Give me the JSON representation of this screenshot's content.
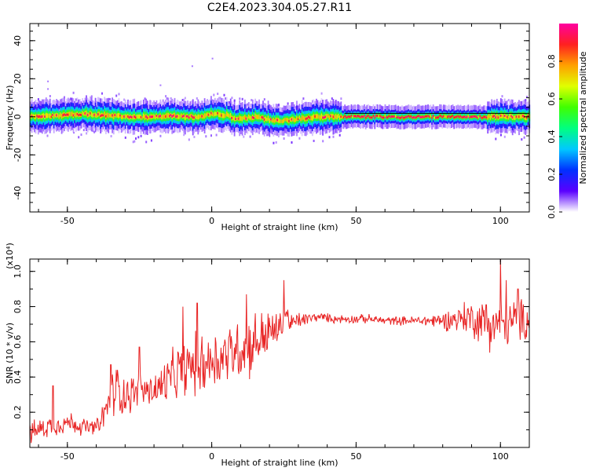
{
  "figure_title": "C2E4.2023.304.05.27.R11",
  "chart_data": [
    {
      "type": "heatmap",
      "title": "C2E4.2023.304.05.27.R11",
      "xlabel": "Height of straight line (km)",
      "ylabel": "Frequency (Hz)",
      "xlim": [
        -63,
        110
      ],
      "ylim": [
        -50,
        49
      ],
      "xticks": [
        -50,
        0,
        50,
        100
      ],
      "yticks": [
        -40,
        -20,
        0,
        20,
        40
      ],
      "xtick_labels": [
        "-50",
        "0",
        "50",
        "100"
      ],
      "ytick_labels": [
        "-40",
        "-20",
        "0",
        "20",
        "40"
      ],
      "colorbar": {
        "label": "Normalized spectral amplitude",
        "range": [
          0,
          1
        ],
        "ticks": [
          0.0,
          0.2,
          0.4,
          0.6,
          0.8
        ],
        "tick_labels": [
          "0.0",
          "0.2",
          "0.4",
          "0.6",
          "0.8"
        ],
        "colormap": [
          "#ffffff",
          "#5a00ff",
          "#0030ff",
          "#00c8ff",
          "#00ff80",
          "#40ff00",
          "#e0ff00",
          "#ffa000",
          "#ff2020",
          "#ff00a0"
        ]
      },
      "ridge_frequency_hz": [
        [
          -63,
          0
        ],
        [
          -55,
          0.5
        ],
        [
          -45,
          1.5
        ],
        [
          -38,
          1
        ],
        [
          -30,
          0
        ],
        [
          -22,
          0
        ],
        [
          -15,
          0.5
        ],
        [
          -8,
          0
        ],
        [
          -5,
          0
        ],
        [
          0,
          1.5
        ],
        [
          5,
          1
        ],
        [
          8,
          -1
        ],
        [
          15,
          0
        ],
        [
          20,
          -1.5
        ],
        [
          25,
          -2
        ],
        [
          30,
          -1
        ],
        [
          35,
          0
        ],
        [
          45,
          0
        ],
        [
          60,
          0
        ],
        [
          80,
          0
        ],
        [
          95,
          0
        ],
        [
          110,
          0
        ]
      ],
      "scattered_points": [
        [
          -57,
          19
        ],
        [
          -57,
          15
        ],
        [
          -53,
          4
        ],
        [
          -48,
          -8
        ],
        [
          -18,
          17
        ],
        [
          -7,
          27
        ],
        [
          0,
          31
        ],
        [
          -40,
          6
        ],
        [
          -28,
          5
        ]
      ],
      "grid": false
    },
    {
      "type": "line",
      "xlabel": "Height of straight line (km)",
      "ylabel": "SNR (10 * v/v)",
      "y_multiplier": "(x10⁴)",
      "xlim": [
        -63,
        110
      ],
      "ylim": [
        0,
        1.07
      ],
      "xticks": [
        -50,
        0,
        50,
        100
      ],
      "yticks": [
        0.2,
        0.4,
        0.6,
        0.8,
        1.0
      ],
      "xtick_labels": [
        "-50",
        "0",
        "50",
        "100"
      ],
      "ytick_labels": [
        "0.2",
        "0.4",
        "0.6",
        "0.8",
        "1.0"
      ],
      "color": "#e82424",
      "grid": false,
      "series": [
        {
          "x": [
            -63,
            -60,
            -57,
            -54,
            -51,
            -48,
            -45,
            -42,
            -39,
            -36,
            -33,
            -30,
            -27,
            -24,
            -21,
            -18,
            -15,
            -12,
            -9,
            -6,
            -3,
            0,
            3,
            6,
            9,
            12,
            15,
            18,
            21,
            24,
            25.5,
            27,
            30,
            33,
            36,
            39,
            42,
            45,
            50,
            55,
            60,
            65,
            70,
            75,
            80,
            85,
            88,
            91,
            94,
            97,
            100,
            103,
            106,
            110
          ],
          "y": [
            0.08,
            0.1,
            0.12,
            0.13,
            0.14,
            0.14,
            0.12,
            0.11,
            0.12,
            0.24,
            0.34,
            0.3,
            0.31,
            0.33,
            0.32,
            0.34,
            0.38,
            0.42,
            0.45,
            0.47,
            0.48,
            0.5,
            0.51,
            0.54,
            0.56,
            0.57,
            0.6,
            0.63,
            0.66,
            0.68,
            0.78,
            0.7,
            0.72,
            0.73,
            0.74,
            0.74,
            0.73,
            0.73,
            0.73,
            0.73,
            0.72,
            0.72,
            0.72,
            0.72,
            0.72,
            0.73,
            0.74,
            0.73,
            0.71,
            0.7,
            0.7,
            0.71,
            0.72,
            0.72
          ],
          "noise": [
            0.05,
            0.05,
            0.05,
            0.05,
            0.05,
            0.05,
            0.04,
            0.04,
            0.04,
            0.1,
            0.12,
            0.1,
            0.08,
            0.08,
            0.08,
            0.1,
            0.12,
            0.12,
            0.13,
            0.14,
            0.15,
            0.14,
            0.14,
            0.14,
            0.14,
            0.15,
            0.14,
            0.13,
            0.1,
            0.07,
            0.05,
            0.05,
            0.04,
            0.03,
            0.02,
            0.02,
            0.02,
            0.02,
            0.02,
            0.02,
            0.02,
            0.02,
            0.02,
            0.03,
            0.04,
            0.06,
            0.08,
            0.09,
            0.1,
            0.12,
            0.12,
            0.11,
            0.1,
            0.09
          ]
        }
      ],
      "spikes": [
        [
          -55,
          0.35
        ],
        [
          -35,
          0.47
        ],
        [
          -25,
          0.57
        ],
        [
          -10,
          0.8
        ],
        [
          -5,
          0.82
        ],
        [
          12,
          0.87
        ],
        [
          25,
          0.95
        ],
        [
          95,
          0.81
        ],
        [
          100,
          1.07
        ],
        [
          102,
          0.95
        ],
        [
          106,
          0.9
        ]
      ]
    }
  ]
}
